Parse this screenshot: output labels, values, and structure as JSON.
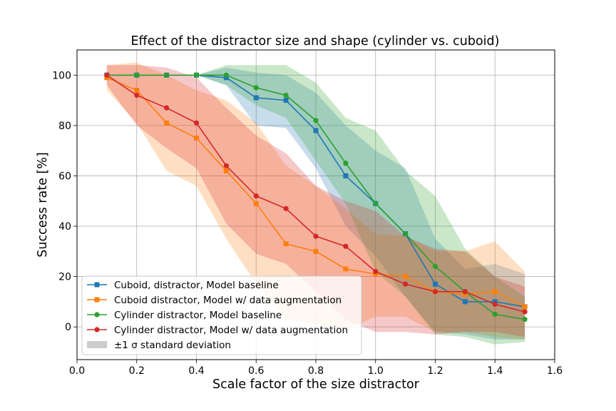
{
  "chart_data": {
    "type": "line",
    "title": "Effect of the distractor size and shape (cylinder vs. cuboid)",
    "xlabel": "Scale factor of the size distractor",
    "ylabel": "Success rate [%]",
    "xlim": [
      0.0,
      1.6
    ],
    "ylim": [
      -13,
      110
    ],
    "xticks": [
      0.0,
      0.2,
      0.4,
      0.6,
      0.8,
      1.0,
      1.2,
      1.4,
      1.6
    ],
    "xtick_labels": [
      "0.0",
      "0.2",
      "0.4",
      "0.6",
      "0.8",
      "1.0",
      "1.2",
      "1.4",
      "1.6"
    ],
    "yticks": [
      0,
      20,
      40,
      60,
      80,
      100
    ],
    "ytick_labels": [
      "0",
      "20",
      "40",
      "60",
      "80",
      "100"
    ],
    "grid": true,
    "legend_position": "lower-left",
    "x": [
      0.1,
      0.2,
      0.3,
      0.4,
      0.5,
      0.6,
      0.7,
      0.8,
      0.9,
      1.0,
      1.1,
      1.2,
      1.3,
      1.4,
      1.5
    ],
    "series": [
      {
        "name": "Cuboid, distractor, Model baseline",
        "color": "#1f77b4",
        "marker": "square",
        "values": [
          100,
          100,
          100,
          100,
          99,
          91,
          90,
          78,
          60,
          49,
          37,
          17,
          10,
          10,
          8
        ],
        "band_lower": [
          100,
          100,
          100,
          100,
          96,
          80,
          79,
          63,
          40,
          28,
          12,
          -2,
          -3,
          -5,
          -5
        ],
        "band_upper": [
          100,
          100,
          100,
          100,
          103,
          101,
          100,
          93,
          80,
          70,
          63,
          35,
          23,
          25,
          21
        ]
      },
      {
        "name": "Cuboid distractor, Model w/ data augmentation",
        "color": "#ff7f0e",
        "marker": "square",
        "values": [
          99,
          94,
          81,
          75,
          62,
          49,
          33,
          30,
          23,
          21,
          20,
          14,
          13,
          14,
          8
        ],
        "band_lower": [
          94,
          81,
          62,
          56,
          35,
          17,
          3,
          1,
          -1,
          4,
          4,
          -2,
          -2,
          -4,
          -5
        ],
        "band_upper": [
          104,
          105,
          100,
          94,
          90,
          81,
          64,
          56,
          47,
          37,
          36,
          30,
          30,
          34,
          22
        ]
      },
      {
        "name": "Cylinder distractor, Model baseline",
        "color": "#2ca02c",
        "marker": "circle",
        "values": [
          100,
          100,
          100,
          100,
          100,
          95,
          92,
          82,
          65,
          49,
          37,
          24,
          14,
          5,
          3
        ],
        "band_lower": [
          100,
          100,
          100,
          100,
          96,
          88,
          83,
          66,
          49,
          22,
          12,
          -3,
          -4,
          -7,
          -6
        ],
        "band_upper": [
          100,
          100,
          100,
          100,
          104,
          104,
          104,
          97,
          83,
          78,
          62,
          52,
          31,
          20,
          12
        ]
      },
      {
        "name": "Cylinder distractor, Model w/ data augmentation",
        "color": "#d62728",
        "marker": "circle",
        "values": [
          100,
          92,
          87,
          81,
          64,
          52,
          47,
          36,
          32,
          22,
          17,
          14,
          14,
          9,
          6
        ],
        "band_lower": [
          96,
          80,
          71,
          63,
          41,
          29,
          25,
          14,
          3,
          -2,
          -2,
          -3,
          -2,
          -2,
          -4
        ],
        "band_upper": [
          104,
          104,
          103,
          99,
          87,
          76,
          69,
          56,
          50,
          46,
          36,
          31,
          30,
          20,
          16
        ]
      }
    ],
    "band_legend_label": "±1 σ standard deviation"
  }
}
